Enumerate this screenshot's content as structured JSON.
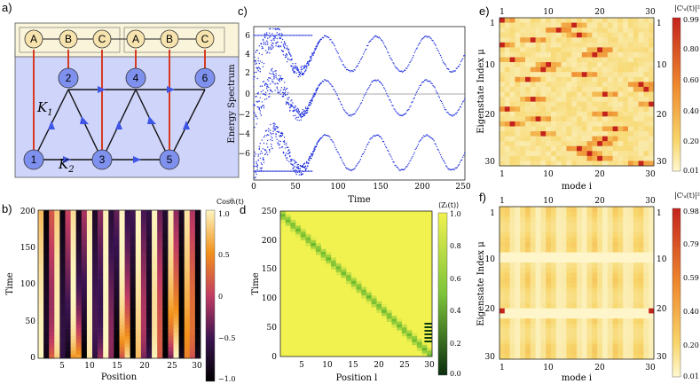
{
  "panels": {
    "a": {
      "label": "a)",
      "top_sites": [
        "A",
        "B",
        "C",
        "A",
        "B",
        "C"
      ],
      "bottom_sites": [
        "1",
        "2",
        "3",
        "4",
        "5",
        "6"
      ],
      "k1_label": "K",
      "k1_sub": "1",
      "k2_label": "K",
      "k2_sub": "2",
      "colors": {
        "site_top": "#f7e3ae",
        "site_bottom": "#7f91ef",
        "box_bottom": "#cfd4fa",
        "box_top": "#f9f4da",
        "vertical_link": "#d63a22",
        "arrow": "#3f55e6"
      }
    },
    "b": {
      "label": "b)",
      "xlabel": "Position",
      "ylabel": "Time",
      "xticks": [
        "5",
        "10",
        "15",
        "20",
        "25",
        "30"
      ],
      "yticks": [
        "0",
        "50",
        "100",
        "150",
        "200"
      ],
      "colorbar_title": "Cosθᵢ(t)",
      "colorbar_ticks": [
        "1.0",
        "0.5",
        "0",
        "−0.5",
        "−1.0"
      ],
      "colors": {
        "high": "#fdf6c0",
        "mid_high": "#f2911a",
        "mid": "#c23c63",
        "mid_low": "#3b1450",
        "low": "#000000"
      }
    },
    "c": {
      "label": "c)",
      "xlabel": "Time",
      "ylabel": "Energy Spectrum",
      "xticks": [
        "0",
        "50",
        "100",
        "150",
        "200",
        "250"
      ],
      "yticks": [
        "6",
        "4",
        "2",
        "0",
        "−2",
        "−4",
        "−6"
      ],
      "colors": {
        "points": "#2233dd"
      }
    },
    "d": {
      "label": "d",
      "xlabel": "Position l",
      "ylabel": "Time",
      "xticks": [
        "5",
        "10",
        "15",
        "20",
        "25",
        "30"
      ],
      "yticks": [
        "0",
        "50",
        "100",
        "150",
        "200",
        "250"
      ],
      "colorbar_title": "⟨Zₗ(t)⟩",
      "colorbar_ticks": [
        "1.0",
        "0.8",
        "0.6",
        "0.4",
        "0.2",
        "0.0"
      ],
      "colors": {
        "background": "#f1f24f",
        "stripe": "#55b22b",
        "dark": "#0b3d10"
      }
    },
    "e": {
      "label": "e)",
      "xlabel": "mode i",
      "ylabel": "Eigenstate Index μ",
      "xticks": [
        "1",
        "10",
        "20",
        "30"
      ],
      "yticks": [
        "1",
        "10",
        "20",
        "30"
      ],
      "colorbar_title": "|Cⁱᵤ(t)|²",
      "colorbar_ticks": [
        "0.99",
        "0.80",
        "0.60",
        "0.40",
        "0.20",
        "0.01"
      ]
    },
    "f": {
      "label": "f)",
      "xlabel": "mode i",
      "ylabel": "Eigenstate Index μ",
      "xticks": [
        "1",
        "10",
        "20",
        "30"
      ],
      "yticks": [
        "1",
        "10",
        "20",
        "30"
      ],
      "colorbar_title": "|Cⁱᵤ(t)|²",
      "colorbar_ticks": [
        "0.98",
        "0.79",
        "0.59",
        "0.40",
        "0.20",
        "0.01"
      ]
    }
  },
  "chart_data": [
    {
      "panel": "b",
      "type": "heatmap",
      "description_values": "cos of precessing phase",
      "xlim": [
        1,
        30
      ],
      "ylim": [
        0,
        200
      ],
      "zlim": [
        -1,
        1
      ]
    },
    {
      "panel": "c",
      "type": "scatter",
      "xlim": [
        0,
        250
      ],
      "ylim": [
        -7,
        7
      ],
      "series": [
        {
          "name": "upper band",
          "center": 4.5,
          "amplitude": 1.6,
          "period": 60
        },
        {
          "name": "middle band",
          "center": 0.5,
          "amplitude": 1.6,
          "period": 60
        },
        {
          "name": "lower band",
          "center": -4.5,
          "amplitude": 1.6,
          "period": 60
        }
      ]
    },
    {
      "panel": "d",
      "type": "heatmap",
      "xlim": [
        1,
        30
      ],
      "ylim": [
        0,
        250
      ],
      "zlim": [
        0,
        1
      ]
    },
    {
      "panel": "e",
      "type": "heatmap",
      "xlim": [
        1,
        30
      ],
      "ylim": [
        1,
        30
      ],
      "zlim": [
        0.01,
        0.99
      ]
    },
    {
      "panel": "f",
      "type": "heatmap",
      "xlim": [
        1,
        30
      ],
      "ylim": [
        1,
        30
      ],
      "zlim": [
        0.01,
        0.98
      ]
    }
  ]
}
